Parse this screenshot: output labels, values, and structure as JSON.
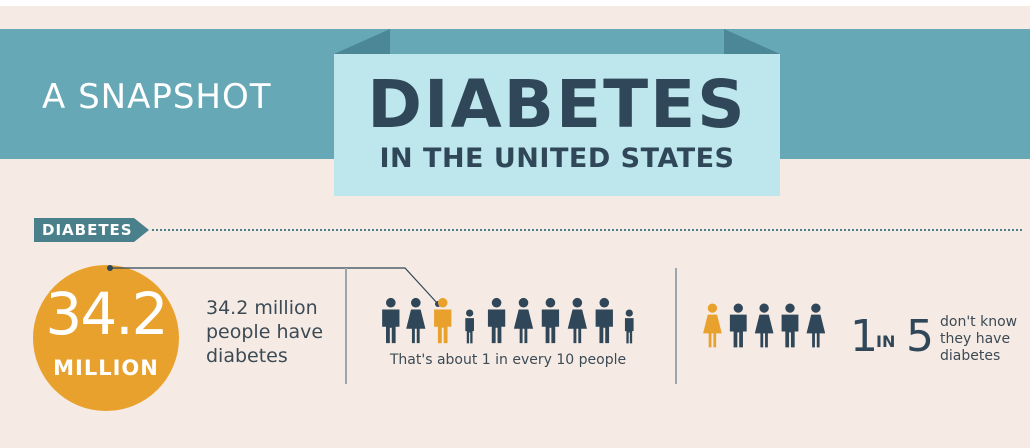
{
  "header": {
    "snapshot_label": "A SNAPSHOT",
    "title": "DIABETES",
    "subtitle": "IN THE UNITED STATES"
  },
  "section": {
    "tag": "DIABETES"
  },
  "stat": {
    "number": "34.2",
    "unit": "MILLION",
    "description_lines": [
      "34.2 million",
      "people have",
      "diabetes"
    ]
  },
  "ratio_ten": {
    "caption": "That's about 1 in every 10 people",
    "highlighted_index": 2,
    "total": 10
  },
  "ratio_five": {
    "one": "1",
    "in": "IN",
    "five": "5",
    "text_lines": [
      "don't know",
      "they have",
      "diabetes"
    ],
    "highlighted_index": 0,
    "total": 5
  },
  "colors": {
    "background": "#f6ebe4",
    "band": "#66a8b6",
    "banner": "#bde7ec",
    "dark": "#2f4758",
    "accent_orange": "#e9a12d",
    "tag": "#4a7f8c"
  },
  "icons": {
    "person_male": "person-male-icon",
    "person_female": "person-female-icon",
    "person_child": "person-child-icon"
  }
}
